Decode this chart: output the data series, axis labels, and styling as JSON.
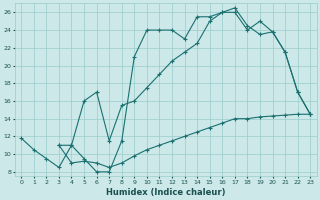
{
  "xlabel": "Humidex (Indice chaleur)",
  "background_color": "#cce8e8",
  "grid_color": "#99cccc",
  "line_color": "#1a7070",
  "xlim": [
    -0.5,
    23.5
  ],
  "ylim": [
    7.5,
    27
  ],
  "yticks": [
    8,
    10,
    12,
    14,
    16,
    18,
    20,
    22,
    24,
    26
  ],
  "xticks": [
    0,
    1,
    2,
    3,
    4,
    5,
    6,
    7,
    8,
    9,
    10,
    11,
    12,
    13,
    14,
    15,
    16,
    17,
    18,
    19,
    20,
    21,
    22,
    23
  ],
  "curve1_x": [
    0,
    1,
    2,
    3,
    4,
    5,
    6,
    7,
    8,
    9,
    10,
    11,
    12,
    13,
    14,
    15,
    16,
    17,
    18,
    19,
    20,
    21,
    22,
    23
  ],
  "curve1_y": [
    11.8,
    10.5,
    9.5,
    8.5,
    11.0,
    9.5,
    8.0,
    8.0,
    11.5,
    21.0,
    24.0,
    24.0,
    24.0,
    23.0,
    25.5,
    25.5,
    26.0,
    26.0,
    24.0,
    25.0,
    23.8,
    21.5,
    17.0,
    14.5
  ],
  "curve2_x": [
    3,
    4,
    5,
    6,
    7,
    8,
    9,
    10,
    11,
    12,
    13,
    14,
    15,
    16,
    17,
    18,
    19,
    20,
    21,
    22,
    23
  ],
  "curve2_y": [
    11.0,
    11.0,
    16.0,
    17.0,
    11.5,
    15.5,
    16.0,
    17.5,
    19.0,
    20.5,
    21.5,
    22.5,
    25.0,
    26.0,
    26.5,
    24.5,
    23.5,
    23.8,
    21.5,
    17.0,
    14.5
  ],
  "curve3_x": [
    3,
    4,
    5,
    6,
    7,
    8,
    9,
    10,
    11,
    12,
    13,
    14,
    15,
    16,
    17,
    18,
    19,
    20,
    21,
    22,
    23
  ],
  "curve3_y": [
    11.0,
    9.0,
    9.2,
    9.0,
    8.5,
    9.0,
    9.8,
    10.5,
    11.0,
    11.5,
    12.0,
    12.5,
    13.0,
    13.5,
    14.0,
    14.0,
    14.2,
    14.3,
    14.4,
    14.5,
    14.5
  ]
}
